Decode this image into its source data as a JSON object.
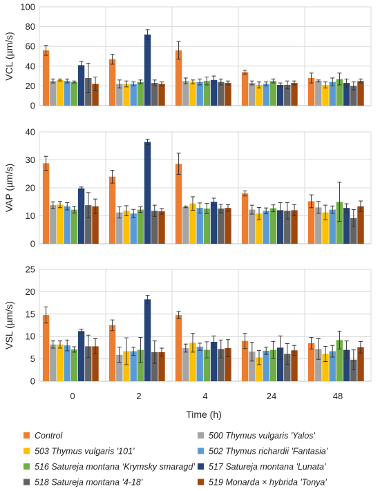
{
  "chart_data": {
    "type": "bar",
    "xlabel": "Time (h)",
    "categories": [
      "0",
      "2",
      "4",
      "24",
      "48"
    ],
    "legend": [
      {
        "name": "Control",
        "color": "#ED7D31"
      },
      {
        "name": "500 Thymus vulgaris 'Yalos'",
        "color": "#A5A5A5"
      },
      {
        "name": "503 Thymus vulgaris '101'",
        "color": "#FFC000"
      },
      {
        "name": "502 Thymus richardii 'Fantasia'",
        "color": "#5B9BD5"
      },
      {
        "name": "516 Satureja montana ‘Krymsky smaragd’",
        "color": "#70AD47"
      },
      {
        "name": "517 Satureja montana 'Lunata'",
        "color": "#264478"
      },
      {
        "name": "518 Satureja montana '4-18'",
        "color": "#636363"
      },
      {
        "name": "519 Monarda × hybrida 'Tonya'",
        "color": "#9E480E"
      }
    ],
    "panels": [
      {
        "ylabel": "VCL (µm/s)",
        "ylim": [
          0,
          100
        ],
        "yticks": [
          0,
          20,
          40,
          60,
          80,
          100
        ],
        "series": [
          {
            "values": [
              56,
              47,
              56,
              34,
              28
            ],
            "errors": [
              5,
              5,
              9,
              2,
              5
            ]
          },
          {
            "values": [
              25,
              22,
              25,
              23,
              25
            ],
            "errors": [
              2,
              4,
              3,
              2,
              1
            ]
          },
          {
            "values": [
              26,
              22,
              24,
              21,
              21
            ],
            "errors": [
              1,
              3,
              2,
              3,
              3
            ]
          },
          {
            "values": [
              25,
              22,
              24,
              22,
              24
            ],
            "errors": [
              2,
              2,
              3,
              2,
              4
            ]
          },
          {
            "values": [
              24,
              24,
              25,
              25,
              27
            ],
            "errors": [
              1,
              2,
              4,
              2,
              6
            ]
          },
          {
            "values": [
              41,
              72,
              26,
              21,
              23
            ],
            "errors": [
              4,
              5,
              4,
              2,
              4
            ]
          },
          {
            "values": [
              28,
              23,
              24,
              21,
              20
            ],
            "errors": [
              15,
              3,
              3,
              4,
              4
            ]
          },
          {
            "values": [
              22,
              22,
              23,
              23,
              25
            ],
            "errors": [
              7,
              2,
              2,
              2,
              2
            ]
          }
        ]
      },
      {
        "ylabel": "VAP (µm/s)",
        "ylim": [
          0,
          40
        ],
        "yticks": [
          0,
          10,
          20,
          30,
          40
        ],
        "series": [
          {
            "values": [
              28.8,
              24.0,
              28.6,
              18.0,
              15.2
            ],
            "errors": [
              2.5,
              2.3,
              3.8,
              0.9,
              2.3
            ]
          },
          {
            "values": [
              13.8,
              11.2,
              13.2,
              12.2,
              13.0
            ],
            "errors": [
              1.2,
              2.0,
              0.3,
              1.6,
              2.1
            ]
          },
          {
            "values": [
              14.0,
              11.8,
              14.4,
              10.8,
              11.2
            ],
            "errors": [
              1.1,
              1.8,
              2.4,
              2.2,
              2.6
            ]
          },
          {
            "values": [
              13.4,
              10.8,
              12.8,
              11.8,
              12.2
            ],
            "errors": [
              1.3,
              1.5,
              1.8,
              1.0,
              1.3
            ]
          },
          {
            "values": [
              12.2,
              12.2,
              12.6,
              12.7,
              15.0
            ],
            "errors": [
              1.2,
              1.0,
              1.8,
              1.2,
              7.0
            ]
          },
          {
            "values": [
              19.8,
              36.4,
              15.0,
              12.0,
              12.8
            ],
            "errors": [
              0.5,
              1.0,
              1.3,
              2.7,
              1.5
            ]
          },
          {
            "values": [
              13.8,
              11.8,
              12.6,
              11.8,
              9.2
            ],
            "errors": [
              4.5,
              2.0,
              1.5,
              2.9,
              3.0
            ]
          },
          {
            "values": [
              13.4,
              11.6,
              12.8,
              12.0,
              13.4
            ],
            "errors": [
              2.6,
              1.0,
              1.2,
              2.0,
              1.9
            ]
          }
        ]
      },
      {
        "ylabel": "VSL (µm/s)",
        "ylim": [
          0,
          25
        ],
        "yticks": [
          0,
          5,
          10,
          15,
          20,
          25
        ],
        "series": [
          {
            "values": [
              14.8,
              12.5,
              14.8,
              9.0,
              8.5
            ],
            "errors": [
              1.8,
              1.2,
              0.8,
              1.7,
              1.3
            ]
          },
          {
            "values": [
              8.2,
              5.9,
              7.4,
              6.6,
              7.2
            ],
            "errors": [
              0.8,
              1.7,
              0.9,
              2.1,
              2.3
            ]
          },
          {
            "values": [
              8.2,
              6.7,
              8.6,
              5.3,
              6.1
            ],
            "errors": [
              0.8,
              3.0,
              2.1,
              1.6,
              1.7
            ]
          },
          {
            "values": [
              8.0,
              6.7,
              7.7,
              6.8,
              6.7
            ],
            "errors": [
              1.2,
              0.9,
              0.8,
              0.8,
              1.3
            ]
          },
          {
            "values": [
              7.1,
              7.0,
              7.0,
              7.0,
              9.2
            ],
            "errors": [
              0.6,
              2.8,
              1.8,
              1.9,
              2.0
            ]
          },
          {
            "values": [
              11.2,
              18.3,
              8.8,
              7.5,
              7.0
            ],
            "errors": [
              0.4,
              0.9,
              1.3,
              2.6,
              2.0
            ]
          },
          {
            "values": [
              7.8,
              6.5,
              7.2,
              6.1,
              4.8
            ],
            "errors": [
              2.5,
              2.5,
              2.0,
              2.3,
              2.2
            ]
          },
          {
            "values": [
              7.8,
              6.5,
              7.4,
              6.9,
              7.6
            ],
            "errors": [
              1.7,
              0.9,
              1.9,
              1.1,
              1.3
            ]
          }
        ]
      }
    ]
  }
}
